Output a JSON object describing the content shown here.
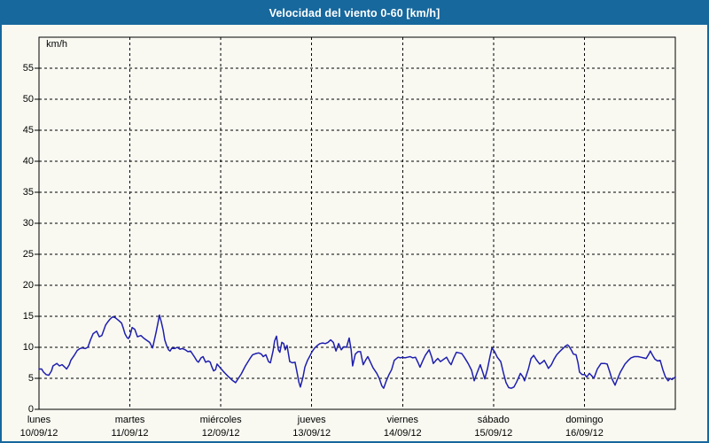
{
  "window": {
    "title": "Velocidad del viento 0-60 [km/h]"
  },
  "colors": {
    "titlebar": "#17689d",
    "frame_border": "#17689d",
    "title_text": "#ffffff",
    "page_background": "#f9f9f2",
    "plot_background": "#ffffff",
    "grid": "#000000",
    "line": "#1f1fae",
    "label_text": "#000000"
  },
  "chart_data": {
    "type": "line",
    "title": "Velocidad del viento 0-60 [km/h]",
    "ylabel": "km/h",
    "ylim": [
      0,
      60
    ],
    "yticks": [
      0,
      5,
      10,
      15,
      20,
      25,
      30,
      35,
      40,
      45,
      50,
      55
    ],
    "x_unit": "hours",
    "xlim": [
      0,
      168
    ],
    "grid": "dashed",
    "legend": "none",
    "day_ticks": [
      {
        "hour": 0,
        "day": "lunes",
        "date": "10/09/12"
      },
      {
        "hour": 24,
        "day": "martes",
        "date": "11/09/12"
      },
      {
        "hour": 48,
        "day": "miércoles",
        "date": "12/09/12"
      },
      {
        "hour": 72,
        "day": "jueves",
        "date": "13/09/12"
      },
      {
        "hour": 96,
        "day": "viernes",
        "date": "14/09/12"
      },
      {
        "hour": 120,
        "day": "sábado",
        "date": "15/09/12"
      },
      {
        "hour": 144,
        "day": "domingo",
        "date": "16/09/12"
      }
    ],
    "series": [
      {
        "name": "Velocidad del viento",
        "unit": "km/h",
        "points": [
          [
            0,
            6.5
          ],
          [
            0.7,
            6.5
          ],
          [
            1.2,
            6.0
          ],
          [
            1.9,
            5.6
          ],
          [
            2.6,
            5.5
          ],
          [
            3.3,
            6.2
          ],
          [
            3.7,
            7.0
          ],
          [
            4.7,
            7.4
          ],
          [
            5.4,
            7.0
          ],
          [
            6.1,
            7.2
          ],
          [
            6.8,
            6.8
          ],
          [
            7.3,
            6.5
          ],
          [
            8,
            7.2
          ],
          [
            8.4,
            7.9
          ],
          [
            9.4,
            8.8
          ],
          [
            10.1,
            9.5
          ],
          [
            10.8,
            9.8
          ],
          [
            11.5,
            9.9
          ],
          [
            12.2,
            9.8
          ],
          [
            12.9,
            10.0
          ],
          [
            13.6,
            11.2
          ],
          [
            14.3,
            12.2
          ],
          [
            15.2,
            12.6
          ],
          [
            15.9,
            11.7
          ],
          [
            16.6,
            11.9
          ],
          [
            17.6,
            13.6
          ],
          [
            18.3,
            14.2
          ],
          [
            18.7,
            14.5
          ],
          [
            19.4,
            14.9
          ],
          [
            20.1,
            14.8
          ],
          [
            21.1,
            14.3
          ],
          [
            21.8,
            13.9
          ],
          [
            22.2,
            13.2
          ],
          [
            22.7,
            12.2
          ],
          [
            23.2,
            11.6
          ],
          [
            23.6,
            11.4
          ],
          [
            24.1,
            12.0
          ],
          [
            24.6,
            13.2
          ],
          [
            25.3,
            12.9
          ],
          [
            26,
            11.7
          ],
          [
            26.9,
            11.9
          ],
          [
            27.6,
            11.5
          ],
          [
            28.3,
            11.2
          ],
          [
            29.2,
            10.8
          ],
          [
            30,
            9.9
          ],
          [
            30.4,
            11.0
          ],
          [
            30.9,
            12.4
          ],
          [
            31.4,
            13.9
          ],
          [
            31.8,
            15.2
          ],
          [
            32.3,
            14.1
          ],
          [
            32.8,
            12.7
          ],
          [
            33.2,
            11.2
          ],
          [
            33.7,
            10.3
          ],
          [
            34.2,
            9.6
          ],
          [
            34.6,
            9.4
          ],
          [
            35.1,
            9.9
          ],
          [
            35.8,
            9.8
          ],
          [
            36.5,
            10.0
          ],
          [
            37.2,
            9.7
          ],
          [
            37.9,
            9.8
          ],
          [
            38.6,
            9.6
          ],
          [
            39.3,
            9.3
          ],
          [
            40,
            9.4
          ],
          [
            41,
            8.5
          ],
          [
            41.7,
            7.8
          ],
          [
            42.1,
            7.6
          ],
          [
            42.8,
            8.3
          ],
          [
            43.3,
            8.5
          ],
          [
            44,
            7.6
          ],
          [
            44.7,
            7.8
          ],
          [
            45.2,
            7.6
          ],
          [
            45.6,
            6.9
          ],
          [
            46.1,
            6.2
          ],
          [
            46.6,
            6.4
          ],
          [
            47,
            7.3
          ],
          [
            47.7,
            6.8
          ],
          [
            48.7,
            6.1
          ],
          [
            49.8,
            5.4
          ],
          [
            51,
            4.7
          ],
          [
            51.9,
            4.3
          ],
          [
            53.4,
            5.7
          ],
          [
            54.5,
            7.0
          ],
          [
            55.7,
            8.2
          ],
          [
            56.4,
            8.8
          ],
          [
            57.3,
            9.0
          ],
          [
            58,
            9.1
          ],
          [
            58.7,
            8.9
          ],
          [
            59.2,
            8.5
          ],
          [
            59.9,
            8.8
          ],
          [
            60.6,
            7.7
          ],
          [
            61.1,
            7.5
          ],
          [
            61.8,
            9.4
          ],
          [
            62.2,
            11.0
          ],
          [
            62.7,
            11.8
          ],
          [
            63.2,
            9.6
          ],
          [
            63.6,
            9.2
          ],
          [
            64.1,
            10.8
          ],
          [
            64.6,
            10.6
          ],
          [
            65,
            9.6
          ],
          [
            65.5,
            10.3
          ],
          [
            66.2,
            7.7
          ],
          [
            66.9,
            7.5
          ],
          [
            67.6,
            7.6
          ],
          [
            68.1,
            6.1
          ],
          [
            68.6,
            4.4
          ],
          [
            69,
            3.6
          ],
          [
            69.7,
            5.2
          ],
          [
            70.2,
            6.8
          ],
          [
            70.9,
            7.9
          ],
          [
            71.6,
            8.7
          ],
          [
            72.1,
            9.3
          ],
          [
            72.8,
            9.9
          ],
          [
            73.5,
            10.3
          ],
          [
            74.2,
            10.6
          ],
          [
            74.9,
            10.7
          ],
          [
            75.6,
            10.6
          ],
          [
            76.3,
            10.8
          ],
          [
            77,
            11.2
          ],
          [
            77.7,
            10.8
          ],
          [
            78.4,
            9.4
          ],
          [
            79.1,
            10.6
          ],
          [
            79.8,
            9.6
          ],
          [
            80.5,
            10.1
          ],
          [
            81.2,
            10.0
          ],
          [
            81.9,
            11.5
          ],
          [
            82.4,
            9.6
          ],
          [
            82.8,
            7.0
          ],
          [
            83.5,
            8.9
          ],
          [
            84.2,
            9.3
          ],
          [
            84.9,
            9.3
          ],
          [
            85.6,
            7.2
          ],
          [
            86.3,
            8.0
          ],
          [
            86.8,
            8.5
          ],
          [
            87.5,
            7.6
          ],
          [
            88.2,
            6.7
          ],
          [
            89.2,
            5.8
          ],
          [
            89.9,
            4.9
          ],
          [
            90.5,
            3.8
          ],
          [
            91,
            3.4
          ],
          [
            91.7,
            4.6
          ],
          [
            92.4,
            5.6
          ],
          [
            93.1,
            6.4
          ],
          [
            93.8,
            7.9
          ],
          [
            94.8,
            8.4
          ],
          [
            95.5,
            8.3
          ],
          [
            95.9,
            8.4
          ],
          [
            96.6,
            8.3
          ],
          [
            97.3,
            8.4
          ],
          [
            98,
            8.5
          ],
          [
            98.7,
            8.3
          ],
          [
            99.4,
            8.4
          ],
          [
            100.1,
            7.5
          ],
          [
            100.6,
            6.8
          ],
          [
            101.3,
            7.8
          ],
          [
            102,
            8.7
          ],
          [
            103,
            9.6
          ],
          [
            103.7,
            8.4
          ],
          [
            104.1,
            7.4
          ],
          [
            104.8,
            7.9
          ],
          [
            105.3,
            8.2
          ],
          [
            106,
            7.7
          ],
          [
            106.7,
            8.0
          ],
          [
            107.6,
            8.4
          ],
          [
            108.3,
            7.6
          ],
          [
            108.8,
            7.2
          ],
          [
            109.5,
            8.3
          ],
          [
            110.2,
            9.2
          ],
          [
            110.9,
            9.1
          ],
          [
            111.6,
            9.0
          ],
          [
            112.3,
            8.4
          ],
          [
            113.3,
            7.4
          ],
          [
            114.2,
            6.3
          ],
          [
            114.9,
            4.6
          ],
          [
            115.6,
            5.8
          ],
          [
            116.5,
            7.2
          ],
          [
            117.2,
            5.9
          ],
          [
            117.7,
            4.9
          ],
          [
            118.4,
            6.5
          ],
          [
            119.1,
            8.6
          ],
          [
            119.6,
            9.9
          ],
          [
            120.3,
            9.3
          ],
          [
            121,
            8.4
          ],
          [
            121.9,
            7.7
          ],
          [
            122.6,
            5.9
          ],
          [
            123.3,
            4.3
          ],
          [
            124,
            3.5
          ],
          [
            124.7,
            3.4
          ],
          [
            125.4,
            3.6
          ],
          [
            126.1,
            4.4
          ],
          [
            127.1,
            5.8
          ],
          [
            127.8,
            5.2
          ],
          [
            128.2,
            4.6
          ],
          [
            129.2,
            6.5
          ],
          [
            129.9,
            8.2
          ],
          [
            130.6,
            8.7
          ],
          [
            131.3,
            8.0
          ],
          [
            132.2,
            7.3
          ],
          [
            132.9,
            7.6
          ],
          [
            133.4,
            7.9
          ],
          [
            134.1,
            7.1
          ],
          [
            134.5,
            6.6
          ],
          [
            135.3,
            7.2
          ],
          [
            136,
            8.1
          ],
          [
            136.7,
            8.8
          ],
          [
            137.6,
            9.4
          ],
          [
            138.3,
            9.8
          ],
          [
            139,
            10.2
          ],
          [
            139.5,
            10.4
          ],
          [
            139.9,
            10.2
          ],
          [
            140.6,
            9.5
          ],
          [
            141.1,
            8.9
          ],
          [
            141.8,
            8.8
          ],
          [
            142.3,
            7.5
          ],
          [
            142.7,
            6.0
          ],
          [
            143.4,
            5.6
          ],
          [
            144.1,
            5.6
          ],
          [
            144.6,
            5.2
          ],
          [
            145.3,
            5.8
          ],
          [
            145.8,
            5.5
          ],
          [
            146.5,
            5.0
          ],
          [
            147.4,
            6.5
          ],
          [
            148.4,
            7.4
          ],
          [
            149.3,
            7.4
          ],
          [
            150,
            7.3
          ],
          [
            150.7,
            6.0
          ],
          [
            151.2,
            5.0
          ],
          [
            152.1,
            3.9
          ],
          [
            152.8,
            5.0
          ],
          [
            153.5,
            6.0
          ],
          [
            154.7,
            7.3
          ],
          [
            155.6,
            7.9
          ],
          [
            156.3,
            8.3
          ],
          [
            157.2,
            8.5
          ],
          [
            158.2,
            8.5
          ],
          [
            158.9,
            8.4
          ],
          [
            159.6,
            8.3
          ],
          [
            160.3,
            8.2
          ],
          [
            161,
            8.9
          ],
          [
            161.4,
            9.4
          ],
          [
            162.1,
            8.6
          ],
          [
            162.6,
            8.1
          ],
          [
            163.3,
            7.8
          ],
          [
            164,
            7.9
          ],
          [
            164.7,
            6.4
          ],
          [
            165.4,
            5.2
          ],
          [
            166.1,
            4.6
          ],
          [
            166.6,
            5.0
          ],
          [
            167.1,
            4.8
          ],
          [
            167.5,
            5.0
          ],
          [
            168,
            5.2
          ]
        ]
      }
    ]
  }
}
